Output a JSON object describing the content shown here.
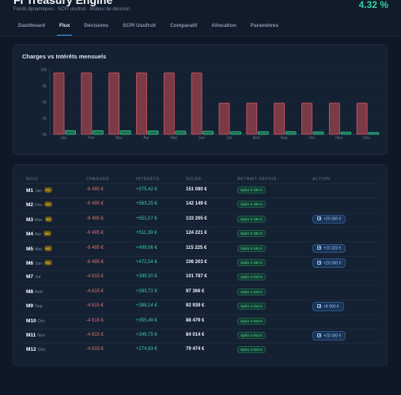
{
  "header": {
    "title": "FI Treasury Engine",
    "subtitle": "Fonds dynamiques · SCPI usufruit · Moteur de décision",
    "rate": "4.32 %"
  },
  "tabs": [
    {
      "label": "Dashboard",
      "active": false
    },
    {
      "label": "Flux",
      "active": true
    },
    {
      "label": "Décisions",
      "active": false
    },
    {
      "label": "SCPI Usufruit",
      "active": false
    },
    {
      "label": "Comparatif",
      "active": false
    },
    {
      "label": "Allocation",
      "active": false
    },
    {
      "label": "Paramètres",
      "active": false
    }
  ],
  "chart_data": {
    "type": "bar",
    "title": "Charges vs Intérêts mensuels",
    "categories": [
      "Jan",
      "Fév",
      "Mar",
      "Avr",
      "Mai",
      "Jun",
      "Jul",
      "Aoû",
      "Sep",
      "Oct",
      "Nov",
      "Déc"
    ],
    "yticks": [
      "0k",
      "3k",
      "5k",
      "8k",
      "10k"
    ],
    "ylim": [
      0,
      10000
    ],
    "grid": true,
    "series": [
      {
        "key": "charges",
        "values": [
          9495,
          9495,
          9495,
          9495,
          9495,
          9495,
          4815,
          4815,
          4815,
          4815,
          4815,
          4815
        ],
        "color": "#7a3b46",
        "stroke": "#d45766"
      },
      {
        "key": "interets",
        "values": [
          575.42,
          563.25,
          551.07,
          511.39,
          499.06,
          472.54,
          399.3,
          393.72,
          388.14,
          355.49,
          349.75,
          274.83
        ],
        "color": "#1f6a4c",
        "stroke": "#34d39a"
      }
    ]
  },
  "table": {
    "headers": {
      "mois": "MOIS",
      "charges": "CHARGES",
      "interets": "INTÉRÊTS",
      "solde": "SOLDE",
      "retrait": "RETRAIT DEPUIS",
      "action": "ACTION"
    },
    "rows": [
      {
        "id": "M1",
        "month": "Jan",
        "hc": "HC",
        "charges": "-9 495 €",
        "interets": "+575,42 €",
        "solde": "151 080 €",
        "retrait": "Spiko 9 495 €",
        "action": ""
      },
      {
        "id": "M2",
        "month": "Fév",
        "hc": "HC",
        "charges": "-9 495 €",
        "interets": "+563,25 €",
        "solde": "142 149 €",
        "retrait": "Spiko 9 495 €",
        "action": ""
      },
      {
        "id": "M3",
        "month": "Mar",
        "hc": "HC",
        "charges": "-9 495 €",
        "interets": "+551,07 €",
        "solde": "133 205 €",
        "retrait": "Spiko 9 495 €",
        "action": "+20 000 €"
      },
      {
        "id": "M4",
        "month": "Avr",
        "hc": "HC",
        "charges": "-9 495 €",
        "interets": "+511,39 €",
        "solde": "124 221 €",
        "retrait": "Spiko 9 495 €",
        "action": ""
      },
      {
        "id": "M5",
        "month": "Mai",
        "hc": "HC",
        "charges": "-9 495 €",
        "interets": "+499,06 €",
        "solde": "115 225 €",
        "retrait": "Spiko 9 495 €",
        "action": "+10 323 €"
      },
      {
        "id": "M6",
        "month": "Jun",
        "hc": "HC",
        "charges": "-9 495 €",
        "interets": "+472,54 €",
        "solde": "106 203 €",
        "retrait": "Spiko 9 495 €",
        "action": "+20 000 €"
      },
      {
        "id": "M7",
        "month": "Jul",
        "hc": "",
        "charges": "-4 815 €",
        "interets": "+399,30 €",
        "solde": "101 787 €",
        "retrait": "Spiko 4 815 €",
        "action": ""
      },
      {
        "id": "M8",
        "month": "Aoû",
        "hc": "",
        "charges": "-4 815 €",
        "interets": "+393,72 €",
        "solde": "97 366 €",
        "retrait": "Spiko 4 815 €",
        "action": ""
      },
      {
        "id": "M9",
        "month": "Sep",
        "hc": "",
        "charges": "-4 815 €",
        "interets": "+388,14 €",
        "solde": "92 939 €",
        "retrait": "Spiko 4 815 €",
        "action": "+8 900 €"
      },
      {
        "id": "M10",
        "month": "Oct",
        "hc": "",
        "charges": "-4 815 €",
        "interets": "+355,49 €",
        "solde": "88 479 €",
        "retrait": "Spiko 4 815 €",
        "action": ""
      },
      {
        "id": "M11",
        "month": "Nov",
        "hc": "",
        "charges": "-4 815 €",
        "interets": "+349,75 €",
        "solde": "84 014 €",
        "retrait": "Spiko 4 815 €",
        "action": "+20 000 €"
      },
      {
        "id": "M12",
        "month": "Déc",
        "hc": "",
        "charges": "-4 815 €",
        "interets": "+274,83 €",
        "solde": "79 474 €",
        "retrait": "Spiko 4 815 €",
        "action": ""
      }
    ]
  }
}
